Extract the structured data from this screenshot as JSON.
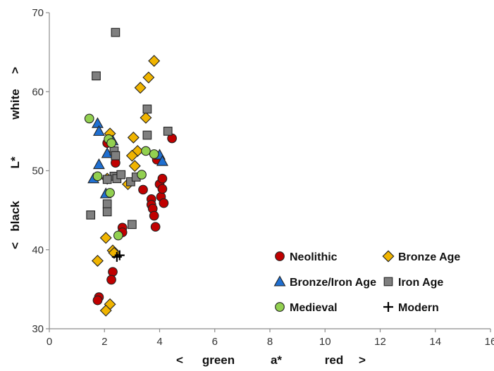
{
  "chart_data": {
    "type": "scatter",
    "xlabel_parts": [
      "<",
      "green",
      "a*",
      "red",
      ">"
    ],
    "ylabel_parts": [
      "<",
      "black",
      "L*",
      "white",
      ">"
    ],
    "xlim": [
      0,
      16
    ],
    "ylim": [
      30,
      70
    ],
    "xticks": [
      0,
      2,
      4,
      6,
      8,
      10,
      12,
      14,
      16
    ],
    "xtick_labels": [
      "0",
      "2",
      "4",
      "6",
      "8",
      "10",
      "12",
      "14",
      "16"
    ],
    "yticks": [
      30,
      40,
      50,
      60,
      70
    ],
    "ytick_labels": [
      "30",
      "40",
      "50",
      "60",
      "70"
    ],
    "grid": false,
    "legend_position": "bottom-right",
    "series": [
      {
        "name": "Neolithic",
        "marker": "circle",
        "color": "#c00000",
        "points": [
          [
            2.1,
            53.5
          ],
          [
            2.4,
            51.0
          ],
          [
            3.4,
            47.6
          ],
          [
            3.7,
            46.4
          ],
          [
            3.7,
            45.7
          ],
          [
            3.75,
            45.2
          ],
          [
            3.8,
            44.3
          ],
          [
            3.85,
            42.9
          ],
          [
            3.9,
            51.4
          ],
          [
            4.0,
            48.3
          ],
          [
            4.05,
            46.7
          ],
          [
            4.1,
            47.7
          ],
          [
            4.1,
            49.0
          ],
          [
            4.15,
            45.9
          ],
          [
            4.45,
            54.1
          ],
          [
            2.65,
            42.8
          ],
          [
            2.65,
            42.2
          ],
          [
            2.3,
            37.2
          ],
          [
            2.25,
            36.2
          ],
          [
            1.8,
            34.0
          ],
          [
            1.75,
            33.6
          ]
        ]
      },
      {
        "name": "Bronze Age",
        "marker": "diamond",
        "color": "#f0b400",
        "points": [
          [
            3.8,
            63.9
          ],
          [
            3.6,
            61.8
          ],
          [
            3.3,
            60.5
          ],
          [
            3.5,
            56.7
          ],
          [
            3.05,
            54.2
          ],
          [
            2.2,
            54.7
          ],
          [
            3.2,
            52.5
          ],
          [
            3.0,
            51.9
          ],
          [
            3.1,
            50.6
          ],
          [
            2.1,
            49.0
          ],
          [
            2.85,
            48.3
          ],
          [
            2.05,
            41.5
          ],
          [
            2.3,
            39.9
          ],
          [
            2.35,
            39.6
          ],
          [
            1.75,
            38.6
          ],
          [
            2.2,
            33.1
          ],
          [
            2.05,
            32.3
          ]
        ]
      },
      {
        "name": "Bronze/Iron Age",
        "marker": "triangle",
        "color": "#1f6fd1",
        "points": [
          [
            1.75,
            56.0
          ],
          [
            1.8,
            55.0
          ],
          [
            2.1,
            52.2
          ],
          [
            2.3,
            53.8
          ],
          [
            1.8,
            50.8
          ],
          [
            1.6,
            49.0
          ],
          [
            2.05,
            47.1
          ],
          [
            4.0,
            52.0
          ],
          [
            4.1,
            51.2
          ]
        ]
      },
      {
        "name": "Iron Age",
        "marker": "square",
        "color": "#7f7f7f",
        "points": [
          [
            2.4,
            67.5
          ],
          [
            1.7,
            62.0
          ],
          [
            3.55,
            57.8
          ],
          [
            3.55,
            54.5
          ],
          [
            4.3,
            55.0
          ],
          [
            2.35,
            52.5
          ],
          [
            2.4,
            51.9
          ],
          [
            2.35,
            49.3
          ],
          [
            2.1,
            48.9
          ],
          [
            2.45,
            49.0
          ],
          [
            2.6,
            49.5
          ],
          [
            2.95,
            48.6
          ],
          [
            3.15,
            49.2
          ],
          [
            2.1,
            45.8
          ],
          [
            2.1,
            44.8
          ],
          [
            1.5,
            44.4
          ],
          [
            3.0,
            43.2
          ]
        ]
      },
      {
        "name": "Medieval",
        "marker": "circle",
        "color": "#92d050",
        "points": [
          [
            1.45,
            56.6
          ],
          [
            2.15,
            54.0
          ],
          [
            2.25,
            53.5
          ],
          [
            3.5,
            52.5
          ],
          [
            3.8,
            52.1
          ],
          [
            1.75,
            49.3
          ],
          [
            3.35,
            49.5
          ],
          [
            2.2,
            47.2
          ],
          [
            2.5,
            41.8
          ]
        ]
      },
      {
        "name": "Modern",
        "marker": "plus",
        "color": "#000000",
        "points": [
          [
            2.45,
            39.1
          ],
          [
            2.55,
            39.3
          ]
        ]
      }
    ]
  }
}
